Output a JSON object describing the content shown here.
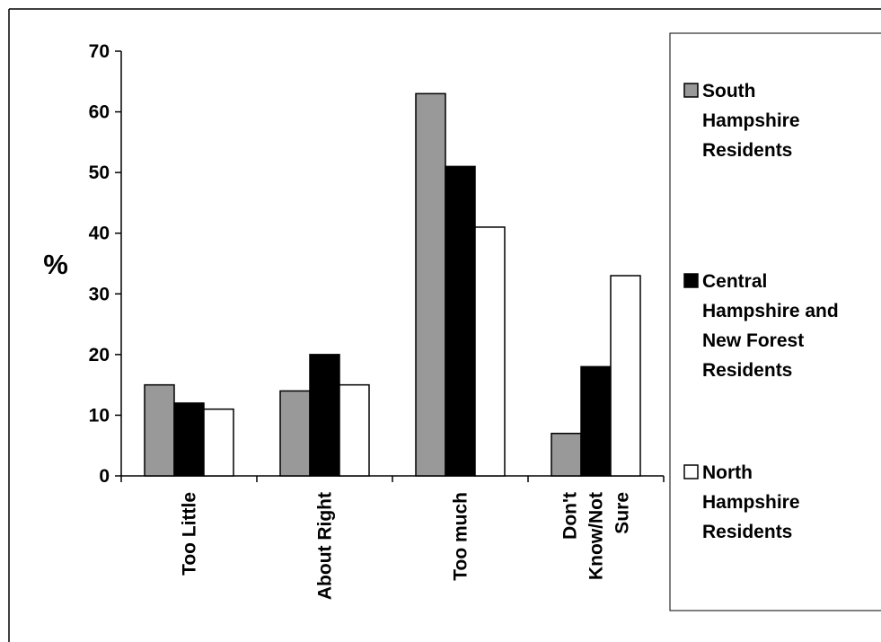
{
  "chart_data": {
    "type": "bar",
    "categories": [
      "Too Little",
      "About Right",
      "Too much",
      "Don't Know/Not Sure"
    ],
    "category_lines": [
      [
        "Too Little"
      ],
      [
        "About Right"
      ],
      [
        "Too much"
      ],
      [
        "Don't",
        "Know/Not",
        "Sure"
      ]
    ],
    "series": [
      {
        "name": "South Hampshire Residents",
        "name_lines": [
          "South",
          "Hampshire",
          "Residents"
        ],
        "color": "#999999",
        "values": [
          15,
          14,
          63,
          7
        ]
      },
      {
        "name": "Central Hampshire and New Forest Residents",
        "name_lines": [
          "Central",
          "Hampshire and",
          "New Forest",
          "Residents"
        ],
        "color": "#000000",
        "values": [
          12,
          20,
          51,
          18
        ]
      },
      {
        "name": "North Hampshire Residents",
        "name_lines": [
          "North",
          "Hampshire",
          "Residents"
        ],
        "color": "#ffffff",
        "values": [
          11,
          15,
          41,
          33
        ]
      }
    ],
    "ylabel": "%",
    "ylim": [
      0,
      70
    ],
    "yticks": [
      "0",
      "10",
      "20",
      "30",
      "40",
      "50",
      "60",
      "70"
    ],
    "grid": false,
    "legend_position": "right"
  }
}
